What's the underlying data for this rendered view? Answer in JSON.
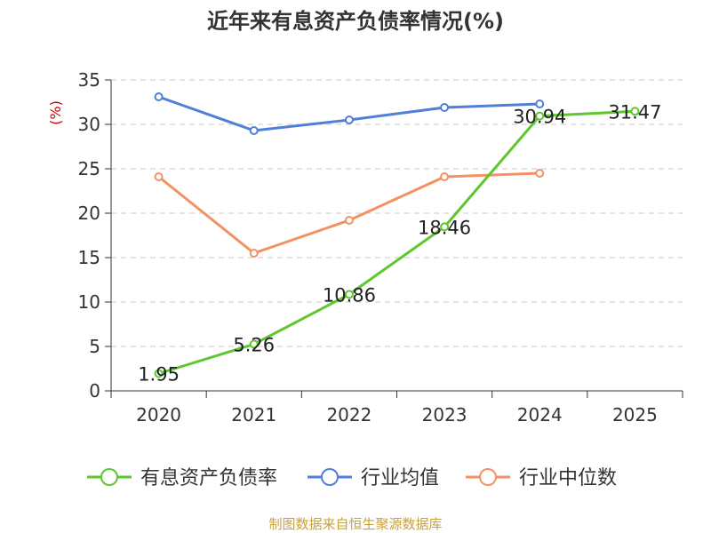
{
  "chart_data": {
    "type": "line",
    "title": "近年来有息资产负债率情况(%)",
    "ylabel": "(%)",
    "xlabel": "",
    "categories": [
      "2020",
      "2021",
      "2022",
      "2023",
      "2024",
      "2025"
    ],
    "ylim": [
      0,
      35
    ],
    "yticks": [
      0,
      5,
      10,
      15,
      20,
      25,
      30,
      35
    ],
    "grid": true,
    "legend_position": "bottom",
    "series": [
      {
        "name": "有息资产负债率",
        "color": "#5ec72f",
        "values": [
          1.95,
          5.26,
          10.86,
          18.46,
          30.94,
          31.47
        ],
        "labels": [
          "1.95",
          "5.26",
          "10.86",
          "18.46",
          "30.94",
          "31.47"
        ]
      },
      {
        "name": "行业均值",
        "color": "#4f7fd8",
        "values": [
          33.1,
          29.3,
          30.5,
          31.9,
          32.3,
          null
        ]
      },
      {
        "name": "行业中位数",
        "color": "#f49163",
        "values": [
          24.1,
          15.5,
          19.2,
          24.1,
          24.5,
          null
        ]
      }
    ]
  },
  "colors": {
    "title": "#333333",
    "ylabel": "#cc0000",
    "source": "#c7a13a",
    "grid": "#c8c8c8",
    "axis": "#333333"
  },
  "source_text": "制图数据来自恒生聚源数据库"
}
